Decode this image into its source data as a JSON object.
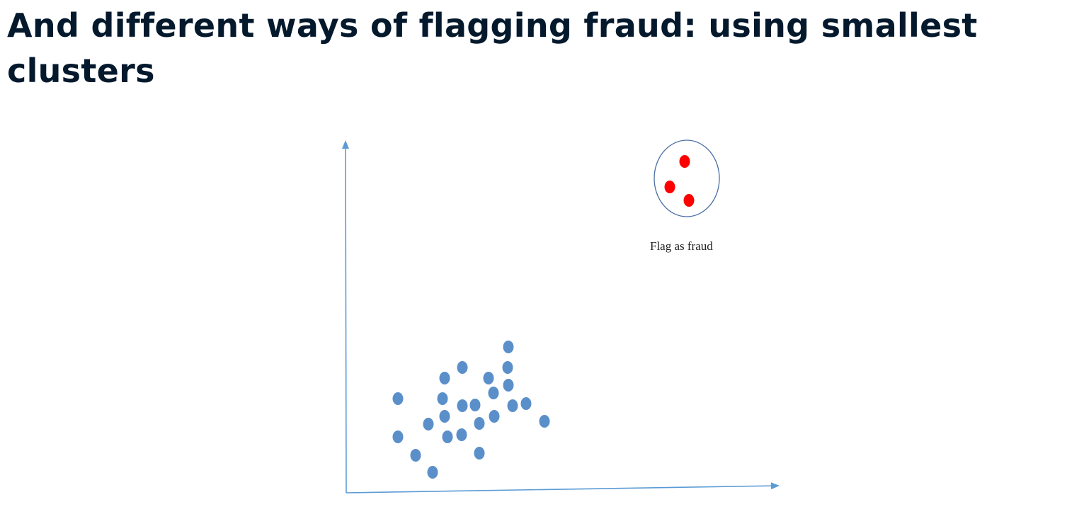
{
  "slide": {
    "title": "And different ways of flagging fraud: using smallest clusters"
  },
  "diagram": {
    "annotation": "Flag as fraud",
    "colors": {
      "axis": "#5b9bd5",
      "normal_point": "#5b8fc9",
      "fraud_point": "#ff0000",
      "cluster_outline": "#4a6fa5",
      "title": "#05192d"
    },
    "icons": {
      "fraud_cluster": "ellipse-outline"
    }
  }
}
